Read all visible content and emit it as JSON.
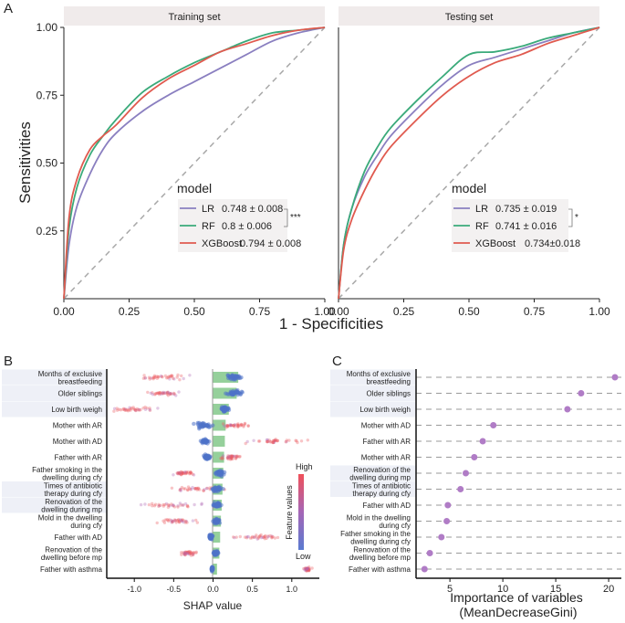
{
  "panel_labels": {
    "a": "A",
    "b": "B",
    "c": "C"
  },
  "chart_data": [
    {
      "id": "roc-training",
      "type": "line",
      "title": "Training set",
      "xlabel": "1 - Specificities",
      "ylabel": "Sensitivities",
      "xlim": [
        0,
        1
      ],
      "ylim": [
        0,
        1
      ],
      "x_ticks": [
        "0.00",
        "0.25",
        "0.50",
        "0.75",
        "1.00"
      ],
      "y_ticks": [
        "0.25",
        "0.50",
        "0.75",
        "1.00"
      ],
      "legend_title": "model",
      "significance": "***",
      "series": [
        {
          "name": "LR",
          "auc": "0.748 ± 0.008",
          "color": "#8a7fc0",
          "x": [
            0,
            0.02,
            0.05,
            0.1,
            0.15,
            0.2,
            0.3,
            0.4,
            0.5,
            0.6,
            0.7,
            0.8,
            0.9,
            1
          ],
          "y": [
            0,
            0.2,
            0.34,
            0.46,
            0.55,
            0.61,
            0.69,
            0.75,
            0.8,
            0.85,
            0.9,
            0.95,
            0.98,
            1
          ]
        },
        {
          "name": "RF",
          "auc": "0.8 ± 0.006",
          "color": "#3aaa7a",
          "x": [
            0,
            0.02,
            0.05,
            0.1,
            0.15,
            0.2,
            0.3,
            0.4,
            0.5,
            0.6,
            0.7,
            0.8,
            0.9,
            1
          ],
          "y": [
            0,
            0.26,
            0.41,
            0.53,
            0.6,
            0.66,
            0.76,
            0.82,
            0.87,
            0.91,
            0.95,
            0.98,
            0.99,
            1
          ]
        },
        {
          "name": "XGBoost",
          "auc": "0.794 ± 0.008",
          "color": "#e05a4f",
          "x": [
            0,
            0.02,
            0.05,
            0.1,
            0.15,
            0.2,
            0.3,
            0.4,
            0.5,
            0.6,
            0.7,
            0.8,
            0.9,
            1
          ],
          "y": [
            0,
            0.3,
            0.44,
            0.55,
            0.6,
            0.64,
            0.74,
            0.81,
            0.86,
            0.91,
            0.94,
            0.97,
            0.99,
            1
          ]
        }
      ]
    },
    {
      "id": "roc-testing",
      "type": "line",
      "title": "Testing set",
      "xlabel": "1 - Specificities",
      "ylabel": "Sensitivities",
      "xlim": [
        0,
        1
      ],
      "ylim": [
        0,
        1
      ],
      "x_ticks": [
        "0.00",
        "0.25",
        "0.50",
        "0.75",
        "1.00"
      ],
      "legend_title": "model",
      "significance": "*",
      "series": [
        {
          "name": "LR",
          "auc": "0.735 ± 0.019",
          "color": "#8a7fc0",
          "x": [
            0,
            0.02,
            0.05,
            0.1,
            0.15,
            0.2,
            0.3,
            0.4,
            0.5,
            0.6,
            0.7,
            0.8,
            0.9,
            1
          ],
          "y": [
            0,
            0.2,
            0.33,
            0.45,
            0.53,
            0.6,
            0.7,
            0.79,
            0.86,
            0.89,
            0.92,
            0.95,
            0.98,
            1
          ]
        },
        {
          "name": "RF",
          "auc": "0.741 ± 0.016",
          "color": "#3aaa7a",
          "x": [
            0,
            0.02,
            0.05,
            0.1,
            0.15,
            0.2,
            0.3,
            0.4,
            0.5,
            0.6,
            0.7,
            0.8,
            0.9,
            1
          ],
          "y": [
            0,
            0.2,
            0.33,
            0.47,
            0.56,
            0.63,
            0.73,
            0.82,
            0.9,
            0.91,
            0.93,
            0.96,
            0.98,
            1
          ]
        },
        {
          "name": "XGBoost",
          "auc": "0.734±0.018",
          "color": "#e05a4f",
          "x": [
            0,
            0.02,
            0.05,
            0.1,
            0.15,
            0.2,
            0.3,
            0.4,
            0.5,
            0.6,
            0.7,
            0.8,
            0.9,
            1
          ],
          "y": [
            0,
            0.18,
            0.29,
            0.4,
            0.49,
            0.56,
            0.66,
            0.75,
            0.82,
            0.87,
            0.9,
            0.94,
            0.97,
            1
          ]
        }
      ]
    },
    {
      "id": "shap-summary",
      "type": "scatter",
      "xlabel": "SHAP value",
      "xlim": [
        -1.35,
        1.35
      ],
      "x_ticks": [
        -1.0,
        -0.5,
        0.0,
        0.5,
        1.0
      ],
      "x_tick_labels": [
        "-1.0",
        "-0.5",
        "0.0",
        "0.5",
        "1.0"
      ],
      "colorbar": {
        "title": "Feature values",
        "high": "High",
        "low": "Low",
        "high_color": "#f0505a",
        "low_color": "#5a7ad0"
      },
      "features": [
        {
          "label": "Months of exclusive breastfeeding",
          "highlight": true,
          "bar": 0.32,
          "low_cluster": [
            0.28,
            0.08
          ],
          "high_cluster": [
            -0.6,
            0.3
          ]
        },
        {
          "label": "Older siblings",
          "highlight": true,
          "bar": 0.3,
          "low_cluster": [
            0.28,
            0.08
          ],
          "high_cluster": [
            -0.6,
            0.2
          ]
        },
        {
          "label": "Low birth weigh",
          "highlight": true,
          "bar": 0.2,
          "low_cluster": [
            0.15,
            0.05
          ],
          "high_cluster": [
            -1.0,
            0.25
          ]
        },
        {
          "label": "Mother with AR",
          "highlight": false,
          "bar": 0.16,
          "low_cluster": [
            -0.12,
            0.1
          ],
          "high_cluster": [
            0.28,
            0.2
          ]
        },
        {
          "label": "Mother with AD",
          "highlight": false,
          "bar": 0.15,
          "low_cluster": [
            -0.1,
            0.04
          ],
          "high_cluster": [
            0.8,
            0.3
          ]
        },
        {
          "label": "Father with AR",
          "highlight": false,
          "bar": 0.14,
          "low_cluster": [
            -0.07,
            0.04
          ],
          "high_cluster": [
            0.22,
            0.12
          ]
        },
        {
          "label": "Father smoking in the dwelling during cfy",
          "highlight": false,
          "bar": 0.13,
          "low_cluster": [
            0.08,
            0.05
          ],
          "high_cluster": [
            -0.35,
            0.15
          ]
        },
        {
          "label": "Times of antibiotic therapy during cfy",
          "highlight": true,
          "bar": 0.12,
          "low_cluster": [
            0.06,
            0.06
          ],
          "high_cluster": [
            -0.2,
            0.3
          ]
        },
        {
          "label": "Renovation of the dwelling during mp",
          "highlight": true,
          "bar": 0.11,
          "low_cluster": [
            0.05,
            0.05
          ],
          "high_cluster": [
            -0.5,
            0.35
          ]
        },
        {
          "label": "Mold in the dwelling during cfy",
          "highlight": false,
          "bar": 0.1,
          "low_cluster": [
            0.04,
            0.04
          ],
          "high_cluster": [
            -0.45,
            0.25
          ]
        },
        {
          "label": "Father with AD",
          "highlight": false,
          "bar": 0.09,
          "low_cluster": [
            -0.03,
            0.02
          ],
          "high_cluster": [
            0.55,
            0.25
          ]
        },
        {
          "label": "Renovation of the dwelling before mp",
          "highlight": false,
          "bar": 0.08,
          "low_cluster": [
            0.03,
            0.03
          ],
          "high_cluster": [
            -0.3,
            0.1
          ]
        },
        {
          "label": "Father with asthma",
          "highlight": false,
          "bar": 0.05,
          "low_cluster": [
            -0.01,
            0.01
          ],
          "high_cluster": [
            1.2,
            0.05
          ]
        }
      ]
    },
    {
      "id": "importance",
      "type": "scatter",
      "xlabel": "Importance of variables (MeanDecreaseGini)",
      "xlim": [
        1.8,
        21.2
      ],
      "x_ticks": [
        5,
        10,
        15,
        20
      ],
      "x_tick_labels": [
        "5",
        "10",
        "15",
        "20"
      ],
      "point_color": "#b07cc6",
      "variables": [
        {
          "label": "Months of exclusive breastfeeding",
          "value": 20.6,
          "highlight": true
        },
        {
          "label": "Older siblings",
          "value": 17.4,
          "highlight": true
        },
        {
          "label": "Low birth weigh",
          "value": 16.1,
          "highlight": true
        },
        {
          "label": "Mother with AD",
          "value": 9.1,
          "highlight": false
        },
        {
          "label": "Father with AR",
          "value": 8.1,
          "highlight": false
        },
        {
          "label": "Mother with AR",
          "value": 7.3,
          "highlight": false
        },
        {
          "label": "Renovation of the dwelling during mp",
          "value": 6.5,
          "highlight": true
        },
        {
          "label": "Times of antibiotic therapy during cfy",
          "value": 6.0,
          "highlight": true
        },
        {
          "label": "Father with AD",
          "value": 4.8,
          "highlight": false
        },
        {
          "label": "Mold in the dwelling during cfy",
          "value": 4.7,
          "highlight": false
        },
        {
          "label": "Father smoking in the dwelling during cfy",
          "value": 4.2,
          "highlight": false
        },
        {
          "label": "Renovation of the dwelling before mp",
          "value": 3.1,
          "highlight": false
        },
        {
          "label": "Father with asthma",
          "value": 2.6,
          "highlight": false
        }
      ]
    }
  ]
}
